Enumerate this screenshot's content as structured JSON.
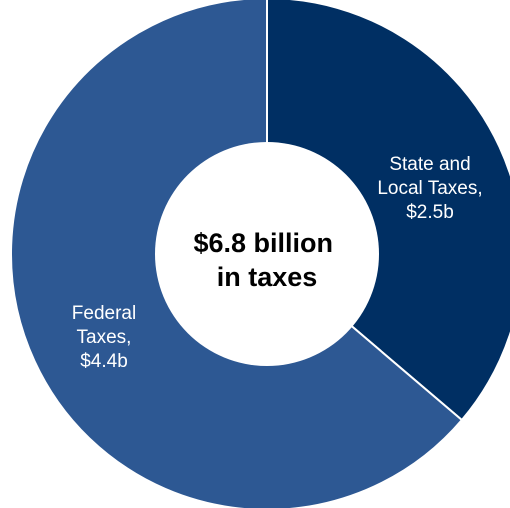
{
  "chart_data": {
    "type": "pie",
    "subtype": "donut",
    "center_label": [
      "$6.8 billion",
      "in taxes"
    ],
    "slices": [
      {
        "name": "State and Local Taxes",
        "value": 2.5,
        "label_lines": [
          "State and",
          "Local Taxes,",
          "$2.5b"
        ],
        "color": "#002f63"
      },
      {
        "name": "Federal Taxes",
        "value": 4.4,
        "label_lines": [
          "Federal",
          "Taxes,",
          "$4.4b"
        ],
        "color": "#2d5893"
      }
    ],
    "start": "12 o'clock",
    "direction": "clockwise",
    "divider_color": "#ffffff"
  }
}
